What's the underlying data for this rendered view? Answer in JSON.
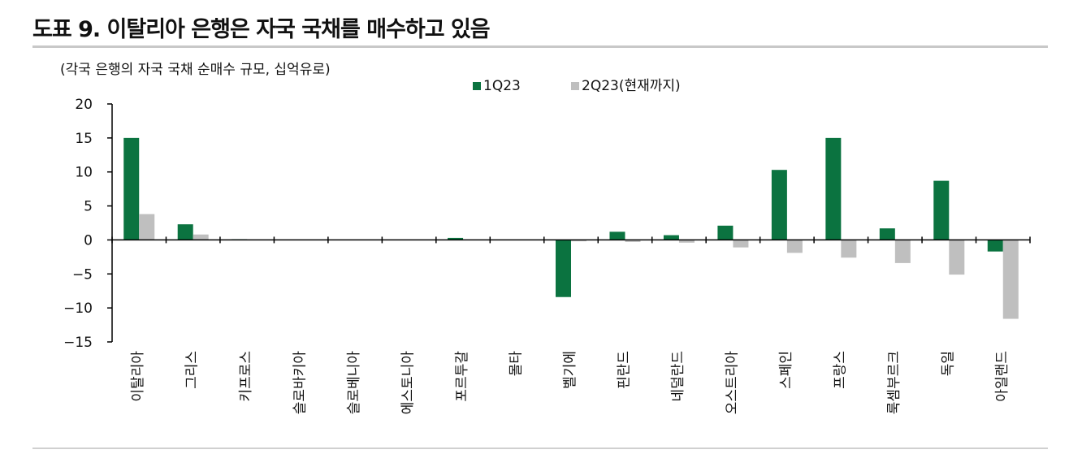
{
  "page_title": "도표 9. 이탈리아 은행은 자국 국채를 매수하고 있음",
  "chart_data": {
    "type": "bar",
    "subtitle": "(각국 은행의 자국 국채 순매수 규모, 십억유로)",
    "categories": [
      "이탈리아",
      "그리스",
      "키프로스",
      "슬로바키아",
      "슬로베니아",
      "에스토니아",
      "포르투갈",
      "몰타",
      "벨기에",
      "핀란드",
      "네덜란드",
      "오스트리아",
      "스페인",
      "프랑스",
      "룩셈부르크",
      "독일",
      "아일랜드"
    ],
    "series": [
      {
        "name": "1Q23",
        "color": "#0b7340",
        "values": [
          15.0,
          2.3,
          0.1,
          0.0,
          0.0,
          0.0,
          0.3,
          0.0,
          -8.4,
          1.2,
          0.7,
          2.1,
          10.3,
          15.0,
          1.7,
          8.7,
          -1.7
        ]
      },
      {
        "name": "2Q23(현재까지)",
        "color": "#bfbfbf",
        "values": [
          3.8,
          0.8,
          0.0,
          0.0,
          0.0,
          0.0,
          0.0,
          0.0,
          -0.2,
          -0.3,
          -0.4,
          -1.1,
          -1.9,
          -2.6,
          -3.4,
          -5.1,
          -11.6
        ]
      }
    ],
    "yticks": [
      20,
      15,
      10,
      5,
      0,
      -5,
      -10,
      -15
    ],
    "ylim": [
      -15,
      20
    ],
    "grid": false,
    "legend_position": "top-right"
  }
}
